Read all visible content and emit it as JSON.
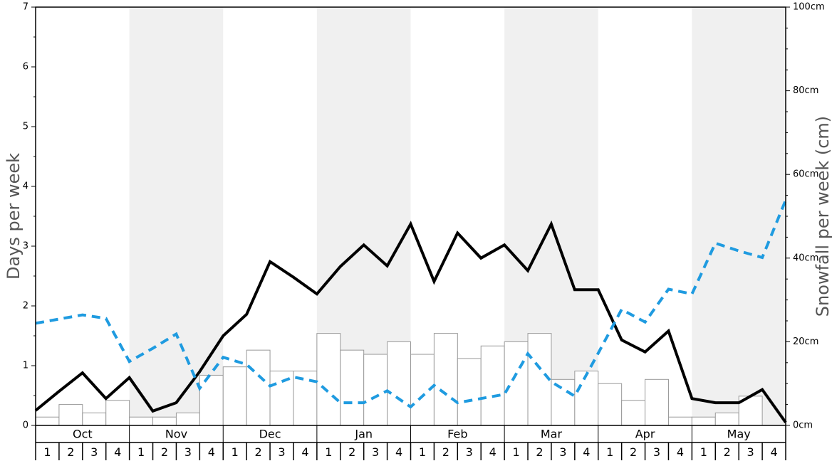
{
  "chart_data": {
    "type": "bar+line",
    "ylabel_left": "Days per week",
    "ylabel_right": "Snowfall per week (cm)",
    "ylim_left": [
      0,
      7
    ],
    "ylim_right": [
      0,
      100
    ],
    "left_ticks": [
      "0",
      "1",
      "2",
      "3",
      "4",
      "5",
      "6",
      "7"
    ],
    "right_ticks": [
      "0cm",
      "20cm",
      "40cm",
      "60cm",
      "80cm",
      "100cm"
    ],
    "months": [
      "Oct",
      "Nov",
      "Dec",
      "Jan",
      "Feb",
      "Mar",
      "Apr",
      "May"
    ],
    "weeks": [
      "1",
      "2",
      "3",
      "4"
    ],
    "series": [
      {
        "kind": "bar",
        "axis": "right",
        "fill": "#ffffff",
        "stroke": "#999999",
        "values": [
          2,
          5,
          3,
          6,
          2,
          2,
          3,
          12,
          14,
          18,
          13,
          13,
          22,
          18,
          17,
          20,
          17,
          22,
          16,
          19,
          20,
          22,
          11,
          13,
          10,
          6,
          11,
          2,
          2,
          3,
          7,
          0
        ]
      },
      {
        "kind": "line",
        "axis": "left",
        "color": "#000000",
        "dashed": false,
        "values": [
          0.25,
          0.57,
          0.88,
          0.45,
          0.8,
          0.24,
          0.38,
          0.9,
          1.5,
          1.86,
          2.74,
          2.48,
          2.2,
          2.66,
          3.02,
          2.67,
          3.37,
          2.41,
          3.22,
          2.8,
          3.02,
          2.59,
          3.37,
          2.27,
          2.27,
          1.43,
          1.23,
          1.58,
          0.45,
          0.38,
          0.38,
          0.6,
          0.05
        ]
      },
      {
        "kind": "line",
        "axis": "left",
        "color": "#1f9be0",
        "dashed": true,
        "values": [
          1.71,
          1.78,
          1.85,
          1.79,
          1.07,
          1.29,
          1.53,
          0.62,
          1.14,
          1.02,
          0.66,
          0.81,
          0.73,
          0.38,
          0.38,
          0.58,
          0.31,
          0.67,
          0.38,
          0.45,
          0.52,
          1.2,
          0.73,
          0.49,
          1.21,
          1.94,
          1.73,
          2.28,
          2.2,
          3.05,
          2.92,
          2.81,
          3.77
        ]
      }
    ],
    "colors": {
      "band_shade": "#f0f0f0",
      "frame": "#000000"
    }
  }
}
